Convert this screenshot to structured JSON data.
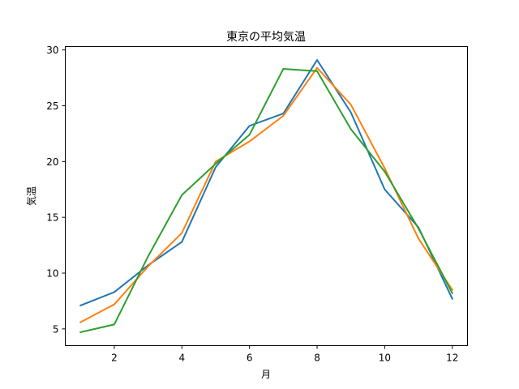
{
  "chart_data": {
    "type": "line",
    "title": "東京の平均気温",
    "xlabel": "月",
    "ylabel": "気温",
    "xlim": [
      0.55,
      12.45
    ],
    "ylim": [
      3.5,
      30.3
    ],
    "xticks": [
      2,
      4,
      6,
      8,
      10,
      12
    ],
    "yticks": [
      5,
      10,
      15,
      20,
      25,
      30
    ],
    "grid": false,
    "x": [
      1,
      2,
      3,
      4,
      5,
      6,
      7,
      8,
      9,
      10,
      11,
      12
    ],
    "series": [
      {
        "color": "#1f77b4",
        "values": [
          7.1,
          8.3,
          10.7,
          12.8,
          19.5,
          23.2,
          24.3,
          29.1,
          24.4,
          17.5,
          14.1,
          7.7
        ]
      },
      {
        "color": "#ff7f0e",
        "values": [
          5.6,
          7.2,
          10.6,
          13.6,
          20.0,
          21.8,
          24.1,
          28.4,
          25.1,
          19.4,
          13.1,
          8.5
        ]
      },
      {
        "color": "#2ca02c",
        "values": [
          4.7,
          5.4,
          11.5,
          17.0,
          19.8,
          22.4,
          28.3,
          28.1,
          22.9,
          19.1,
          14.0,
          8.2
        ]
      }
    ]
  }
}
